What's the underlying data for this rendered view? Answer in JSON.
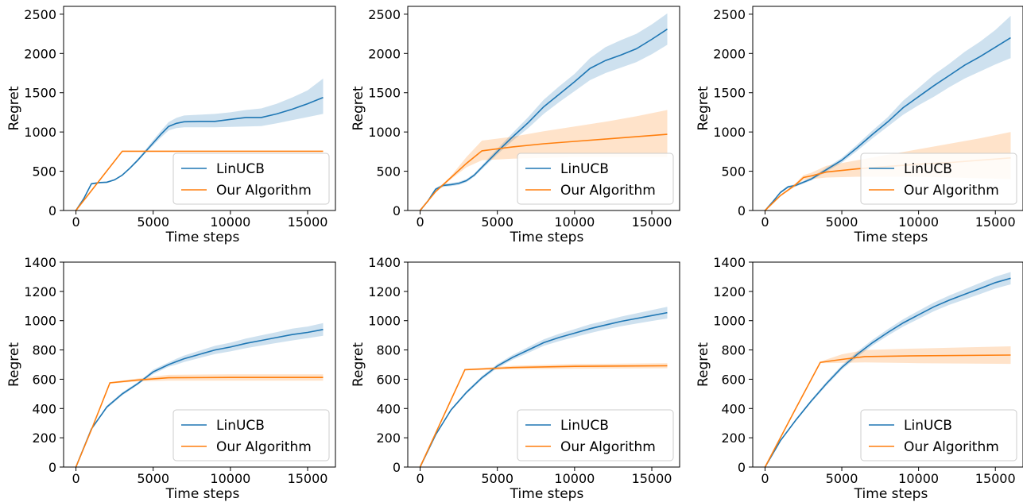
{
  "colors": {
    "linucb": "#1f77b4",
    "ours": "#ff7f0e"
  },
  "chart_data": [
    {
      "type": "line",
      "xlabel": "Time steps",
      "ylabel": "Regret",
      "xlim": [
        -800,
        16800
      ],
      "ylim": [
        0,
        2600
      ],
      "xticks": [
        0,
        5000,
        10000,
        15000
      ],
      "yticks": [
        0,
        500,
        1000,
        1500,
        2000,
        2500
      ],
      "legend": "bottom-right",
      "series": [
        {
          "name": "LinUCB",
          "color": "linucb",
          "x": [
            0,
            500,
            1000,
            1500,
            2000,
            2500,
            3000,
            3500,
            4000,
            4500,
            5000,
            5500,
            6000,
            6500,
            7000,
            8000,
            9000,
            10000,
            11000,
            12000,
            13000,
            14000,
            15000,
            16000
          ],
          "y": [
            0,
            150,
            340,
            355,
            360,
            390,
            450,
            540,
            640,
            750,
            860,
            970,
            1070,
            1110,
            1130,
            1135,
            1135,
            1160,
            1185,
            1185,
            1230,
            1290,
            1360,
            1440
          ],
          "lower": [
            0,
            140,
            330,
            345,
            350,
            380,
            440,
            530,
            625,
            730,
            830,
            930,
            1020,
            1050,
            1060,
            1060,
            1060,
            1065,
            1070,
            1075,
            1110,
            1150,
            1190,
            1230
          ],
          "upper": [
            0,
            160,
            350,
            365,
            370,
            400,
            460,
            555,
            660,
            775,
            895,
            1015,
            1125,
            1180,
            1210,
            1220,
            1230,
            1250,
            1280,
            1300,
            1360,
            1440,
            1530,
            1680
          ]
        },
        {
          "name": "Our Algorithm",
          "color": "ours",
          "x": [
            0,
            3000,
            16000
          ],
          "y": [
            0,
            755,
            755
          ],
          "lower": [
            0,
            750,
            750
          ],
          "upper": [
            0,
            760,
            760
          ]
        }
      ]
    },
    {
      "type": "line",
      "xlabel": "Time steps",
      "ylabel": "Regret",
      "xlim": [
        -800,
        16800
      ],
      "ylim": [
        0,
        2600
      ],
      "xticks": [
        0,
        5000,
        10000,
        15000
      ],
      "yticks": [
        0,
        500,
        1000,
        1500,
        2000,
        2500
      ],
      "legend": "bottom-right",
      "series": [
        {
          "name": "LinUCB",
          "color": "linucb",
          "x": [
            0,
            500,
            1000,
            1500,
            2000,
            2500,
            3000,
            3500,
            4000,
            4500,
            5000,
            6000,
            7000,
            8000,
            9000,
            10000,
            11000,
            12000,
            13000,
            14000,
            15000,
            16000
          ],
          "y": [
            0,
            120,
            270,
            320,
            330,
            345,
            380,
            450,
            550,
            650,
            750,
            940,
            1120,
            1320,
            1480,
            1640,
            1810,
            1910,
            1980,
            2060,
            2180,
            2310
          ],
          "lower": [
            0,
            110,
            255,
            300,
            310,
            325,
            360,
            430,
            525,
            620,
            715,
            890,
            1050,
            1230,
            1380,
            1520,
            1660,
            1750,
            1820,
            1890,
            1990,
            2110
          ],
          "upper": [
            0,
            130,
            285,
            340,
            350,
            365,
            400,
            470,
            575,
            680,
            785,
            990,
            1190,
            1410,
            1580,
            1740,
            1940,
            2080,
            2170,
            2250,
            2370,
            2510
          ]
        },
        {
          "name": "Our Algorithm",
          "color": "ours",
          "x": [
            0,
            1000,
            2000,
            3000,
            4000,
            6000,
            8000,
            10000,
            12000,
            14000,
            16000
          ],
          "y": [
            0,
            240,
            420,
            600,
            760,
            810,
            850,
            880,
            910,
            940,
            970
          ],
          "lower": [
            0,
            230,
            400,
            550,
            640,
            660,
            670,
            680,
            680,
            680,
            680
          ],
          "upper": [
            0,
            250,
            440,
            680,
            890,
            940,
            1010,
            1070,
            1130,
            1200,
            1280
          ]
        }
      ]
    },
    {
      "type": "line",
      "xlabel": "Time steps",
      "ylabel": "Regret",
      "xlim": [
        -800,
        16800
      ],
      "ylim": [
        0,
        2600
      ],
      "xticks": [
        0,
        5000,
        10000,
        15000
      ],
      "yticks": [
        0,
        500,
        1000,
        1500,
        2000,
        2500
      ],
      "legend": "bottom-right",
      "series": [
        {
          "name": "LinUCB",
          "color": "linucb",
          "x": [
            0,
            500,
            1000,
            1500,
            2000,
            3000,
            4000,
            5000,
            6000,
            7000,
            8000,
            9000,
            10000,
            11000,
            12000,
            13000,
            14000,
            15000,
            16000
          ],
          "y": [
            0,
            110,
            230,
            300,
            320,
            400,
            520,
            640,
            800,
            970,
            1130,
            1310,
            1450,
            1590,
            1720,
            1850,
            1960,
            2080,
            2200
          ],
          "lower": [
            0,
            100,
            215,
            285,
            305,
            380,
            495,
            610,
            760,
            920,
            1070,
            1220,
            1340,
            1450,
            1570,
            1680,
            1770,
            1860,
            1940
          ],
          "upper": [
            0,
            120,
            245,
            315,
            335,
            420,
            545,
            670,
            840,
            1020,
            1190,
            1400,
            1560,
            1730,
            1870,
            2020,
            2150,
            2300,
            2480
          ]
        },
        {
          "name": "Our Algorithm",
          "color": "ours",
          "x": [
            0,
            1000,
            2000,
            2500,
            3000,
            4000,
            6000,
            8000,
            10000,
            12000,
            14000,
            16000
          ],
          "y": [
            0,
            190,
            330,
            420,
            440,
            490,
            530,
            560,
            590,
            610,
            640,
            670
          ],
          "lower": [
            0,
            180,
            310,
            390,
            400,
            420,
            430,
            430,
            430,
            420,
            410,
            400
          ],
          "upper": [
            0,
            200,
            350,
            450,
            480,
            570,
            640,
            710,
            780,
            850,
            920,
            1000
          ]
        }
      ]
    },
    {
      "type": "line",
      "xlabel": "Time steps",
      "ylabel": "Regret",
      "xlim": [
        -800,
        16800
      ],
      "ylim": [
        0,
        1400
      ],
      "xticks": [
        0,
        5000,
        10000,
        15000
      ],
      "yticks": [
        0,
        200,
        400,
        600,
        800,
        1000,
        1200,
        1400
      ],
      "legend": "bottom-right",
      "series": [
        {
          "name": "LinUCB",
          "color": "linucb",
          "x": [
            0,
            1000,
            2000,
            3000,
            4000,
            4500,
            5000,
            5500,
            6000,
            6500,
            7000,
            8000,
            9000,
            10000,
            11000,
            12000,
            13000,
            14000,
            15000,
            16000
          ],
          "y": [
            0,
            260,
            410,
            500,
            570,
            610,
            650,
            675,
            700,
            720,
            740,
            770,
            800,
            820,
            845,
            865,
            885,
            905,
            920,
            940
          ],
          "lower": [
            0,
            255,
            400,
            490,
            560,
            600,
            635,
            660,
            685,
            700,
            718,
            745,
            772,
            790,
            812,
            830,
            848,
            865,
            880,
            897
          ],
          "upper": [
            0,
            265,
            420,
            510,
            580,
            620,
            665,
            690,
            715,
            740,
            762,
            795,
            828,
            850,
            878,
            900,
            922,
            945,
            960,
            983
          ]
        },
        {
          "name": "Our Algorithm",
          "color": "ours",
          "x": [
            0,
            1000,
            2200,
            4000,
            6000,
            10000,
            16000
          ],
          "y": [
            0,
            255,
            575,
            595,
            610,
            612,
            612
          ],
          "lower": [
            0,
            250,
            570,
            585,
            590,
            590,
            590
          ],
          "upper": [
            0,
            260,
            580,
            605,
            630,
            634,
            634
          ]
        }
      ]
    },
    {
      "type": "line",
      "xlabel": "Time steps",
      "ylabel": "Regret",
      "xlim": [
        -800,
        16800
      ],
      "ylim": [
        0,
        1400
      ],
      "xticks": [
        0,
        5000,
        10000,
        15000
      ],
      "yticks": [
        0,
        200,
        400,
        600,
        800,
        1000,
        1200,
        1400
      ],
      "legend": "bottom-right",
      "series": [
        {
          "name": "LinUCB",
          "color": "linucb",
          "x": [
            0,
            1000,
            2000,
            3000,
            4000,
            5000,
            6000,
            7000,
            8000,
            9000,
            10000,
            11000,
            12000,
            13000,
            14000,
            15000,
            16000
          ],
          "y": [
            0,
            220,
            390,
            510,
            610,
            690,
            750,
            800,
            850,
            885,
            915,
            945,
            970,
            995,
            1015,
            1035,
            1055
          ],
          "lower": [
            0,
            215,
            382,
            500,
            598,
            676,
            734,
            780,
            828,
            860,
            888,
            915,
            940,
            962,
            980,
            998,
            1015
          ],
          "upper": [
            0,
            225,
            398,
            520,
            622,
            704,
            766,
            820,
            872,
            910,
            942,
            975,
            1000,
            1028,
            1050,
            1072,
            1095
          ]
        },
        {
          "name": "Our Algorithm",
          "color": "ours",
          "x": [
            0,
            1000,
            2900,
            4000,
            6000,
            10000,
            16000
          ],
          "y": [
            0,
            230,
            665,
            670,
            680,
            688,
            692
          ],
          "lower": [
            0,
            225,
            660,
            662,
            668,
            672,
            675
          ],
          "upper": [
            0,
            235,
            670,
            678,
            692,
            704,
            709
          ]
        }
      ]
    },
    {
      "type": "line",
      "xlabel": "Time steps",
      "ylabel": "Regret",
      "xlim": [
        -800,
        16800
      ],
      "ylim": [
        0,
        1400
      ],
      "xticks": [
        0,
        5000,
        10000,
        15000
      ],
      "yticks": [
        0,
        200,
        400,
        600,
        800,
        1000,
        1200,
        1400
      ],
      "legend": "bottom-right",
      "series": [
        {
          "name": "LinUCB",
          "color": "linucb",
          "x": [
            0,
            1000,
            2000,
            3000,
            4000,
            5000,
            6000,
            7000,
            8000,
            9000,
            10000,
            11000,
            12000,
            13000,
            14000,
            15000,
            16000
          ],
          "y": [
            0,
            180,
            320,
            450,
            570,
            680,
            770,
            850,
            920,
            985,
            1040,
            1095,
            1140,
            1180,
            1220,
            1260,
            1290
          ],
          "lower": [
            0,
            175,
            312,
            440,
            557,
            665,
            752,
            830,
            898,
            960,
            1012,
            1065,
            1108,
            1145,
            1182,
            1220,
            1248
          ],
          "upper": [
            0,
            185,
            328,
            460,
            583,
            695,
            788,
            870,
            942,
            1010,
            1068,
            1125,
            1172,
            1215,
            1258,
            1300,
            1332
          ]
        },
        {
          "name": "Our Algorithm",
          "color": "ours",
          "x": [
            0,
            1000,
            2000,
            3600,
            5000,
            6500,
            10000,
            16000
          ],
          "y": [
            0,
            200,
            400,
            715,
            735,
            755,
            760,
            765
          ],
          "lower": [
            0,
            195,
            395,
            710,
            712,
            715,
            710,
            705
          ],
          "upper": [
            0,
            205,
            405,
            720,
            770,
            800,
            810,
            825
          ]
        }
      ]
    }
  ]
}
